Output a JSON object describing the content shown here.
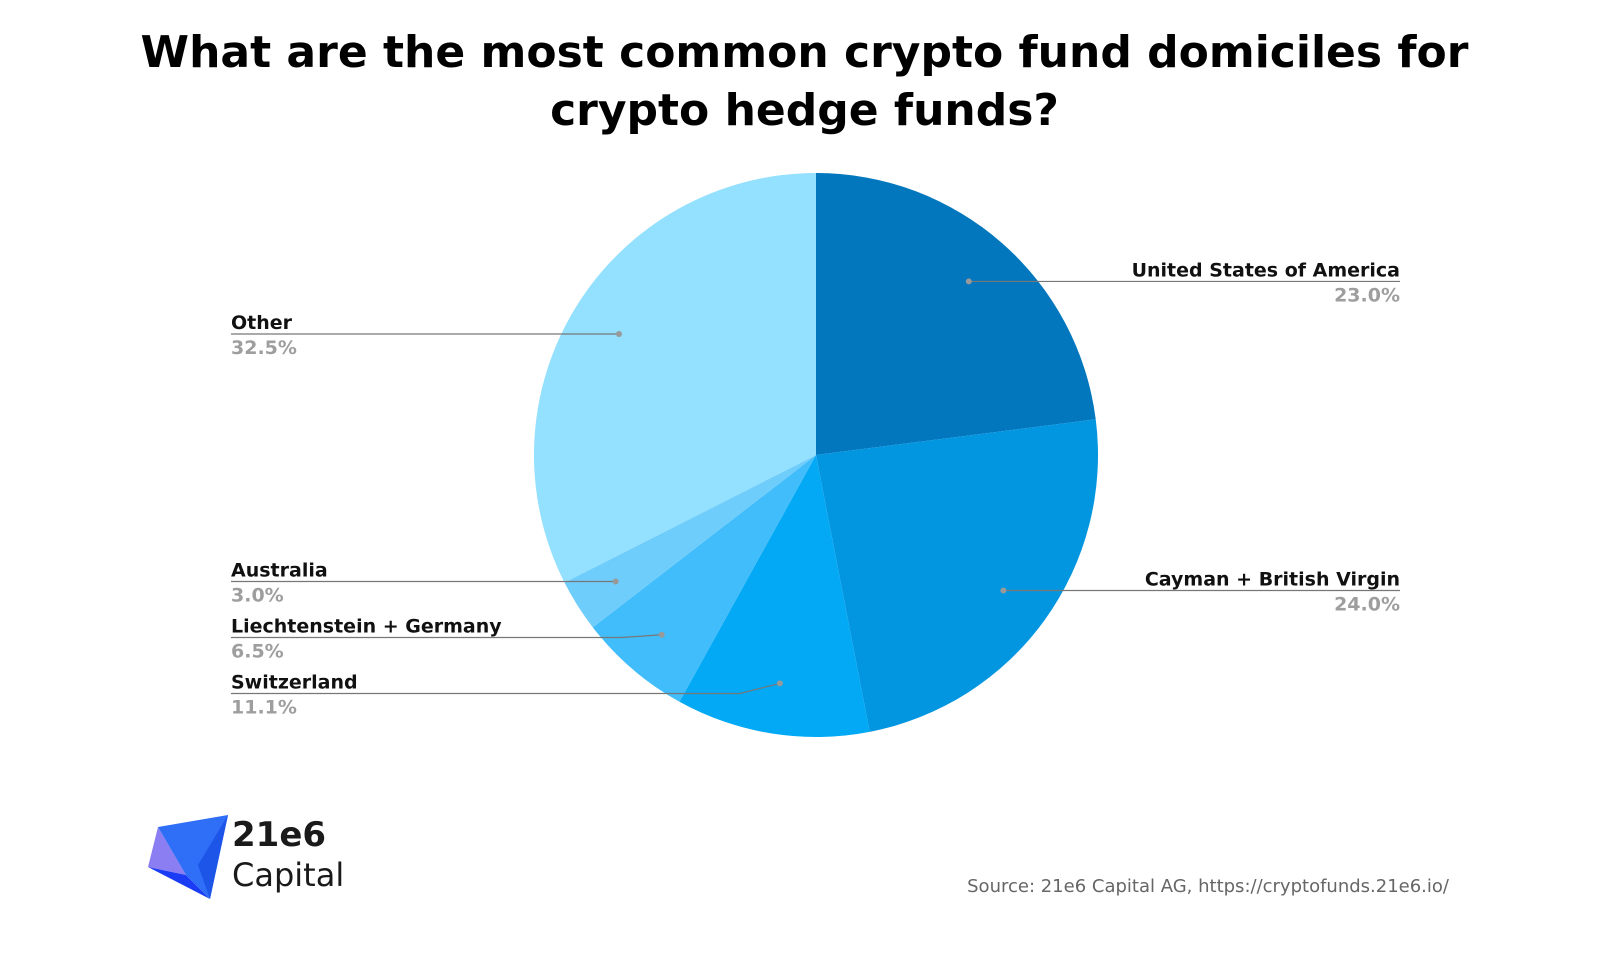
{
  "chart_data": {
    "type": "pie",
    "title": "What are the most common crypto fund domiciles for crypto hedge funds?",
    "title_lines": [
      "What are the most common crypto fund domiciles for",
      "crypto hedge funds?"
    ],
    "slices": [
      {
        "label": "United States of America",
        "value": 23.0,
        "value_label": "23.0%",
        "color": "#0277bd",
        "side": "right"
      },
      {
        "label": "Cayman + British Virgin",
        "value": 24.0,
        "value_label": "24.0%",
        "color": "#0296e0",
        "side": "right"
      },
      {
        "label": "Switzerland",
        "value": 11.1,
        "value_label": "11.1%",
        "color": "#03a9f4",
        "side": "left"
      },
      {
        "label": "Liechtenstein + Germany",
        "value": 6.5,
        "value_label": "6.5%",
        "color": "#40bdfa",
        "side": "left"
      },
      {
        "label": "Australia",
        "value": 3.0,
        "value_label": "3.0%",
        "color": "#6fcdfc",
        "side": "left"
      },
      {
        "label": "Other",
        "value": 32.5,
        "value_label": "32.5%",
        "color": "#93e0ff",
        "side": "left"
      }
    ],
    "start_angle": "12 o'clock",
    "direction": "clockwise",
    "legend": "none"
  },
  "logo": {
    "line1": "21e6",
    "line2": "Capital"
  },
  "source": "Source: 21e6 Capital AG, https://cryptofunds.21e6.io/",
  "colors": {
    "leader_line": "#777777",
    "leader_dot": "#999999",
    "value_text": "#9e9e9e"
  }
}
